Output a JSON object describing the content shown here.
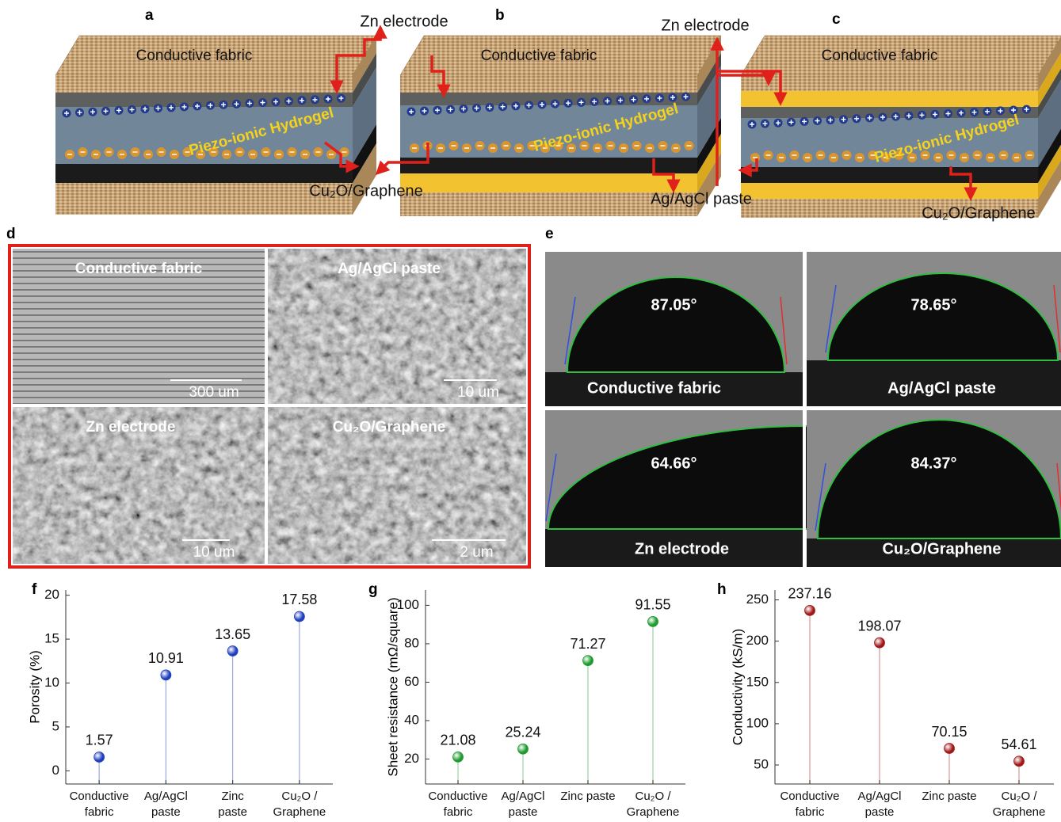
{
  "schematics": [
    {
      "label": "a",
      "fabric": "Conductive fabric",
      "hydrogel": "Piezo-ionic Hydrogel",
      "callouts": [
        "Zn electrode",
        "Cu₂O/Graphene"
      ]
    },
    {
      "label": "b",
      "fabric": "Conductive fabric",
      "hydrogel": "Piezo-ionic Hydrogel",
      "callouts": [
        "Zn electrode",
        "Ag/AgCl paste"
      ]
    },
    {
      "label": "c",
      "fabric": "Conductive fabric",
      "hydrogel": "Piezo-ionic Hydrogel",
      "callouts": [
        "Cu₂O/Graphene"
      ]
    }
  ],
  "sem": {
    "label": "d",
    "images": [
      {
        "title": "Conductive fabric",
        "scale": "300 um"
      },
      {
        "title": "Ag/AgCl paste",
        "scale": "10 um"
      },
      {
        "title": "Zn electrode",
        "scale": "10 um"
      },
      {
        "title": "Cu₂O/Graphene",
        "scale": "2 um"
      }
    ]
  },
  "contact_angle": {
    "label": "e",
    "images": [
      {
        "angle": "87.05°",
        "title": "Conductive fabric"
      },
      {
        "angle": "78.65°",
        "title": "Ag/AgCl paste"
      },
      {
        "angle": "64.66°",
        "title": "Zn electrode"
      },
      {
        "angle": "84.37°",
        "title": "Cu₂O/Graphene"
      }
    ]
  },
  "chart_data": [
    {
      "type": "lollipop",
      "panel_label": "f",
      "y_label": "Porosity (%)",
      "categories": [
        "Conductive\nfabric",
        "Ag/AgCl\npaste",
        "Zinc\npaste",
        "Cu₂O /\nGraphene"
      ],
      "values": [
        1.57,
        10.91,
        13.65,
        17.58
      ],
      "color": "#1f3fbf",
      "ylim": [
        -1.5,
        20.6
      ],
      "yticks": [
        0,
        5,
        10,
        15,
        20
      ]
    },
    {
      "type": "lollipop",
      "panel_label": "g",
      "y_label": "Sheet resistance (mΩ/square)",
      "categories": [
        "Conductive\nfabric",
        "Ag/AgCl\npaste",
        "Zinc paste",
        "Cu₂O /\nGraphene"
      ],
      "values": [
        21.08,
        25.24,
        71.27,
        91.55
      ],
      "color": "#1e9a2e",
      "ylim": [
        7,
        108
      ],
      "yticks": [
        20,
        40,
        60,
        80,
        100
      ]
    },
    {
      "type": "lollipop",
      "panel_label": "h",
      "y_label": "Conductivity (kS/m)",
      "categories": [
        "Conductive\nfabric",
        "Ag/AgCl\npaste",
        "Zinc paste",
        "Cu₂O /\nGraphene"
      ],
      "values": [
        237.16,
        198.07,
        70.15,
        54.61
      ],
      "color": "#a01818",
      "ylim": [
        27,
        262
      ],
      "yticks": [
        50,
        100,
        150,
        200,
        250
      ]
    }
  ]
}
